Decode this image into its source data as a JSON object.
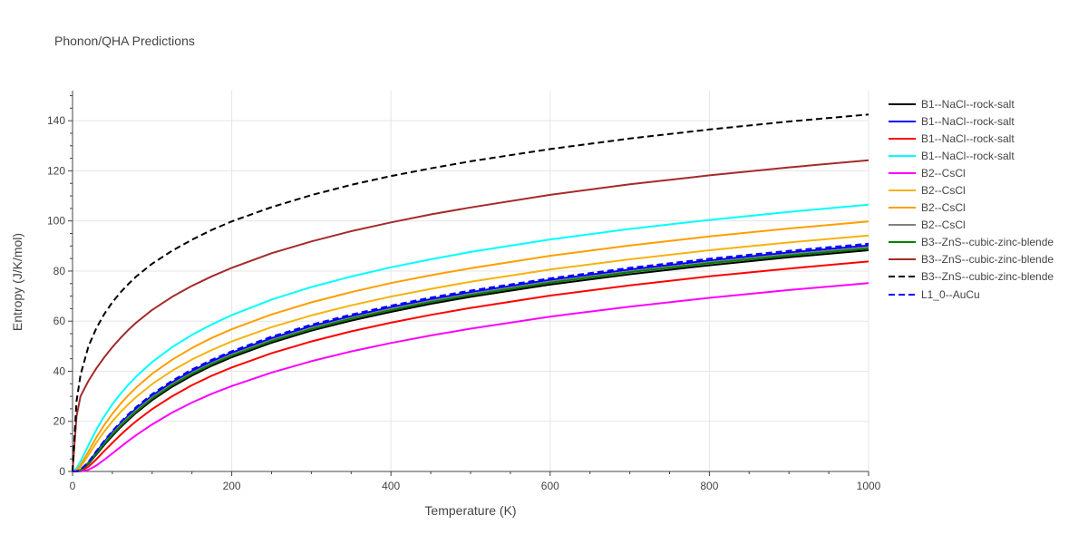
{
  "chart_data": {
    "type": "line",
    "title": "Phonon/QHA Predictions",
    "xlabel": "Temperature (K)",
    "ylabel": "Entropy (J/K/mol)",
    "xlim": [
      0,
      1000
    ],
    "ylim": [
      0,
      152
    ],
    "xticks": [
      0,
      200,
      400,
      600,
      800,
      1000
    ],
    "yticks": [
      0,
      20,
      40,
      60,
      80,
      100,
      120,
      140
    ],
    "grid": true,
    "legend_position": "right",
    "x": [
      0,
      5,
      10,
      20,
      30,
      40,
      50,
      60,
      70,
      80,
      100,
      125,
      150,
      175,
      200,
      250,
      300,
      350,
      400,
      450,
      500,
      600,
      700,
      800,
      900,
      1000
    ],
    "series": [
      {
        "name": "B1--NaCl--rock-salt",
        "color": "#000000",
        "dash": "solid",
        "values": [
          0,
          0.05,
          0.4,
          3.0,
          6.8,
          10.6,
          14.2,
          17.5,
          20.6,
          23.4,
          28.5,
          33.8,
          38.3,
          42.2,
          45.6,
          51.4,
          56.2,
          60.2,
          63.7,
          66.9,
          69.7,
          74.6,
          78.7,
          82.3,
          85.5,
          88.3
        ]
      },
      {
        "name": "B1--NaCl--rock-salt",
        "color": "#0000ff",
        "dash": "solid",
        "values": [
          0,
          0.1,
          0.6,
          3.6,
          7.8,
          11.9,
          15.7,
          19.1,
          22.3,
          25.1,
          30.3,
          35.6,
          40.1,
          44.0,
          47.4,
          53.2,
          58.0,
          62.0,
          65.6,
          68.8,
          71.6,
          76.5,
          80.6,
          84.2,
          87.4,
          90.2
        ]
      },
      {
        "name": "B1--NaCl--rock-salt",
        "color": "#ff0000",
        "dash": "solid",
        "values": [
          0,
          0.03,
          0.2,
          1.9,
          4.9,
          8.2,
          11.4,
          14.5,
          17.4,
          20.1,
          24.9,
          30.0,
          34.4,
          38.2,
          41.5,
          47.2,
          51.9,
          55.9,
          59.4,
          62.5,
          65.3,
          70.2,
          74.3,
          77.9,
          81.0,
          83.8
        ]
      },
      {
        "name": "B1--NaCl--rock-salt",
        "color": "#00ffff",
        "dash": "solid",
        "values": [
          0,
          1.3,
          4.0,
          10.5,
          16.7,
          22.1,
          26.8,
          30.9,
          34.6,
          37.9,
          43.7,
          49.6,
          54.5,
          58.7,
          62.4,
          68.6,
          73.6,
          77.8,
          81.5,
          84.7,
          87.6,
          92.6,
          96.8,
          100.4,
          103.6,
          106.5
        ]
      },
      {
        "name": "B2--CsCl",
        "color": "#ff00ff",
        "dash": "solid",
        "values": [
          0,
          0.01,
          0.05,
          0.7,
          2.4,
          4.7,
          7.2,
          9.7,
          12.2,
          14.5,
          18.8,
          23.5,
          27.5,
          31.0,
          34.1,
          39.5,
          44.0,
          47.9,
          51.3,
          54.3,
          57.0,
          61.8,
          65.8,
          69.3,
          72.4,
          75.2
        ]
      },
      {
        "name": "B2--CsCl",
        "color": "#f6b20f",
        "dash": "solid",
        "values": [
          0,
          0.4,
          1.8,
          6.5,
          11.5,
          16.0,
          20.0,
          23.6,
          26.8,
          29.7,
          34.9,
          40.2,
          44.7,
          48.5,
          51.9,
          57.6,
          62.3,
          66.3,
          69.8,
          72.9,
          75.7,
          80.6,
          84.7,
          88.3,
          91.4,
          94.2
        ]
      },
      {
        "name": "B2--CsCl",
        "color": "#ff9e00",
        "dash": "solid",
        "values": [
          0,
          0.6,
          2.5,
          8.0,
          13.6,
          18.6,
          23.0,
          26.9,
          30.4,
          33.5,
          39.0,
          44.6,
          49.3,
          53.3,
          56.8,
          62.7,
          67.5,
          71.6,
          75.2,
          78.3,
          81.1,
          86.1,
          90.2,
          93.8,
          97.0,
          99.8
        ]
      },
      {
        "name": "B2--CsCl",
        "color": "#808080",
        "dash": "solid",
        "values": [
          0,
          0.08,
          0.5,
          3.4,
          7.4,
          11.4,
          15.1,
          18.5,
          21.6,
          24.4,
          29.6,
          34.9,
          39.4,
          43.3,
          46.7,
          52.5,
          57.3,
          61.3,
          64.9,
          68.1,
          70.9,
          75.8,
          79.9,
          83.5,
          86.7,
          89.5
        ]
      },
      {
        "name": "B3--ZnS--cubic-zinc-blende",
        "color": "#008000",
        "dash": "solid",
        "values": [
          0,
          0.05,
          0.4,
          3.2,
          7.1,
          11.0,
          14.7,
          18.0,
          21.1,
          23.9,
          29.1,
          34.4,
          38.9,
          42.8,
          46.2,
          52.0,
          56.8,
          60.9,
          64.4,
          67.6,
          70.4,
          75.3,
          79.5,
          83.1,
          86.2,
          89.0
        ]
      },
      {
        "name": "B3--ZnS--cubic-zinc-blende",
        "color": "#a52a2a",
        "dash": "solid",
        "values": [
          0,
          22.0,
          30.0,
          36.2,
          41.2,
          45.6,
          49.6,
          53.2,
          56.5,
          59.4,
          64.5,
          69.7,
          74.1,
          77.9,
          81.3,
          87.1,
          91.8,
          95.9,
          99.4,
          102.6,
          105.4,
          110.4,
          114.6,
          118.2,
          121.4,
          124.2
        ]
      },
      {
        "name": "B3--ZnS--cubic-zinc-blende",
        "color": "#000000",
        "dash": "dash",
        "values": [
          0,
          28.0,
          38.5,
          50.0,
          57.2,
          62.9,
          67.5,
          71.4,
          74.8,
          77.8,
          82.9,
          88.1,
          92.5,
          96.4,
          99.8,
          105.5,
          110.3,
          114.4,
          117.9,
          121.0,
          123.8,
          128.7,
          132.9,
          136.5,
          139.7,
          142.5
        ]
      },
      {
        "name": "L1_0--AuCu",
        "color": "#0000ff",
        "dash": "dash",
        "values": [
          0,
          0.1,
          0.7,
          3.8,
          8.1,
          12.3,
          16.1,
          19.6,
          22.8,
          25.7,
          30.9,
          36.2,
          40.7,
          44.6,
          48.0,
          53.8,
          58.6,
          62.6,
          66.2,
          69.4,
          72.2,
          77.1,
          81.3,
          84.9,
          88.1,
          90.9
        ]
      }
    ]
  }
}
